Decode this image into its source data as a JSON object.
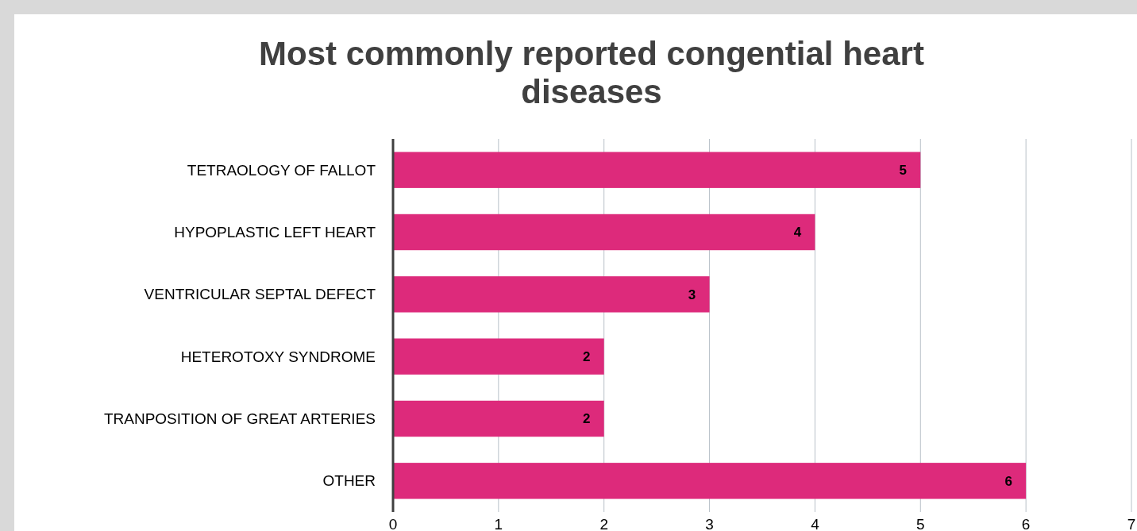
{
  "chart_data": {
    "type": "bar",
    "orientation": "horizontal",
    "title": "Most commonly reported congential heart diseases",
    "categories": [
      "TETRAOLOGY OF FALLOT",
      "HYPOPLASTIC LEFT HEART",
      "VENTRICULAR SEPTAL DEFECT",
      "HETEROTOXY SYNDROME",
      "TRANPOSITION OF GREAT ARTERIES",
      "OTHER"
    ],
    "values": [
      5,
      4,
      3,
      2,
      2,
      6
    ],
    "color": "#dd2a7b",
    "xlim": [
      0,
      7
    ],
    "xticks": [
      0,
      1,
      2,
      3,
      4,
      5,
      6,
      7
    ],
    "grid": "x",
    "data_labels": true
  }
}
